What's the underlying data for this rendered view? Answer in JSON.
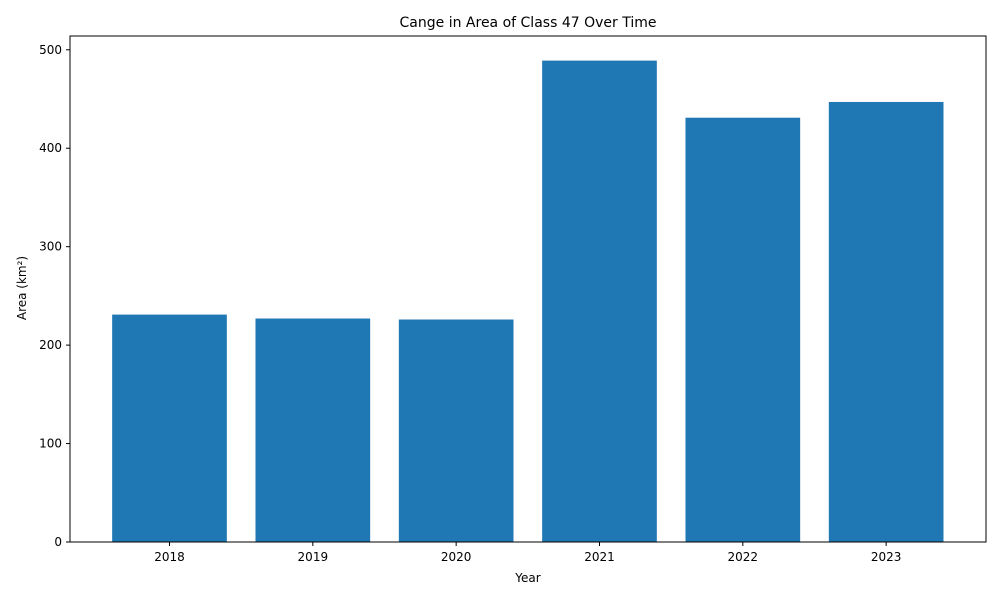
{
  "chart_data": {
    "type": "bar",
    "title": "Cange in Area of Class 47 Over Time",
    "xlabel": "Year",
    "ylabel": "Area (km²)",
    "categories": [
      "2018",
      "2019",
      "2020",
      "2021",
      "2022",
      "2023"
    ],
    "values": [
      231,
      227,
      226,
      489,
      431,
      447
    ],
    "ylim": [
      0,
      514
    ],
    "yticks": [
      "0",
      "100",
      "200",
      "300",
      "400",
      "500"
    ],
    "grid": false,
    "legend": "none",
    "bar_color": "#1f77b4"
  }
}
